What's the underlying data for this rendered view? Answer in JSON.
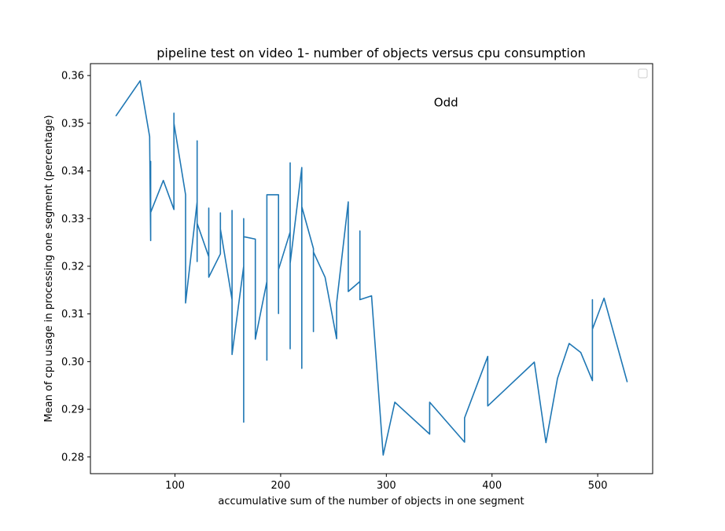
{
  "chart_data": {
    "type": "line",
    "title": "pipeline test on video 1- number of objects versus cpu consumption",
    "xlabel": "accumulative sum of the number of objects in one segment",
    "ylabel": "Mean of cpu usage in processing one segment (percentage)",
    "xlim": [
      20,
      552
    ],
    "ylim": [
      0.2765,
      0.3625
    ],
    "xticks": [
      100,
      200,
      300,
      400,
      500
    ],
    "yticks": [
      0.28,
      0.29,
      0.3,
      0.31,
      0.32,
      0.33,
      0.34,
      0.35,
      0.36
    ],
    "xtick_labels": [
      "100",
      "200",
      "300",
      "400",
      "500"
    ],
    "ytick_labels": [
      "0.28",
      "0.29",
      "0.30",
      "0.31",
      "0.32",
      "0.33",
      "0.34",
      "0.35",
      "0.36"
    ],
    "grid": false,
    "legend_placement": "top-right",
    "annotation": {
      "text": "Odd",
      "x": 345,
      "y": 0.3535,
      "color": "#ff0000"
    },
    "series": [
      {
        "color": "#1f77b4",
        "points": [
          [
            44,
            0.3515
          ],
          [
            67,
            0.3589
          ],
          [
            76,
            0.3472
          ],
          [
            77,
            0.3254
          ],
          [
            77,
            0.342
          ],
          [
            77,
            0.3313
          ],
          [
            89,
            0.338
          ],
          [
            99,
            0.3319
          ],
          [
            99,
            0.3521
          ],
          [
            99,
            0.35
          ],
          [
            110,
            0.335
          ],
          [
            110,
            0.3123
          ],
          [
            121,
            0.3335
          ],
          [
            121,
            0.3463
          ],
          [
            121,
            0.321
          ],
          [
            121,
            0.329
          ],
          [
            132,
            0.322
          ],
          [
            132,
            0.3322
          ],
          [
            132,
            0.3177
          ],
          [
            143,
            0.3226
          ],
          [
            143,
            0.3312
          ],
          [
            143,
            0.3278
          ],
          [
            154,
            0.313
          ],
          [
            154,
            0.3317
          ],
          [
            154,
            0.3015
          ],
          [
            165,
            0.32
          ],
          [
            165,
            0.3272
          ],
          [
            165,
            0.33
          ],
          [
            165,
            0.3105
          ],
          [
            165,
            0.2873
          ],
          [
            165,
            0.3262
          ],
          [
            176,
            0.3257
          ],
          [
            176,
            0.3047
          ],
          [
            187,
            0.3168
          ],
          [
            187,
            0.3003
          ],
          [
            187,
            0.335
          ],
          [
            198,
            0.335
          ],
          [
            198,
            0.3101
          ],
          [
            198,
            0.3286
          ],
          [
            198,
            0.3193
          ],
          [
            209,
            0.3272
          ],
          [
            209,
            0.3027
          ],
          [
            209,
            0.3417
          ],
          [
            209,
            0.3206
          ],
          [
            220,
            0.3407
          ],
          [
            220,
            0.2986
          ],
          [
            220,
            0.3325
          ],
          [
            231,
            0.3237
          ],
          [
            231,
            0.3063
          ],
          [
            231,
            0.323
          ],
          [
            242,
            0.3177
          ],
          [
            253,
            0.3048
          ],
          [
            253,
            0.3123
          ],
          [
            264,
            0.3335
          ],
          [
            264,
            0.3147
          ],
          [
            275,
            0.3168
          ],
          [
            275,
            0.3274
          ],
          [
            275,
            0.313
          ],
          [
            286,
            0.3138
          ],
          [
            297,
            0.2804
          ],
          [
            308,
            0.2915
          ],
          [
            341,
            0.2848
          ],
          [
            341,
            0.2915
          ],
          [
            374,
            0.2831
          ],
          [
            374,
            0.2882
          ],
          [
            396,
            0.3011
          ],
          [
            396,
            0.2907
          ],
          [
            440,
            0.2999
          ],
          [
            451,
            0.283
          ],
          [
            462,
            0.2965
          ],
          [
            473,
            0.3038
          ],
          [
            484,
            0.3019
          ],
          [
            495,
            0.296
          ],
          [
            495,
            0.313
          ],
          [
            495,
            0.3068
          ],
          [
            506,
            0.3133
          ],
          [
            528,
            0.2957
          ]
        ]
      }
    ]
  }
}
